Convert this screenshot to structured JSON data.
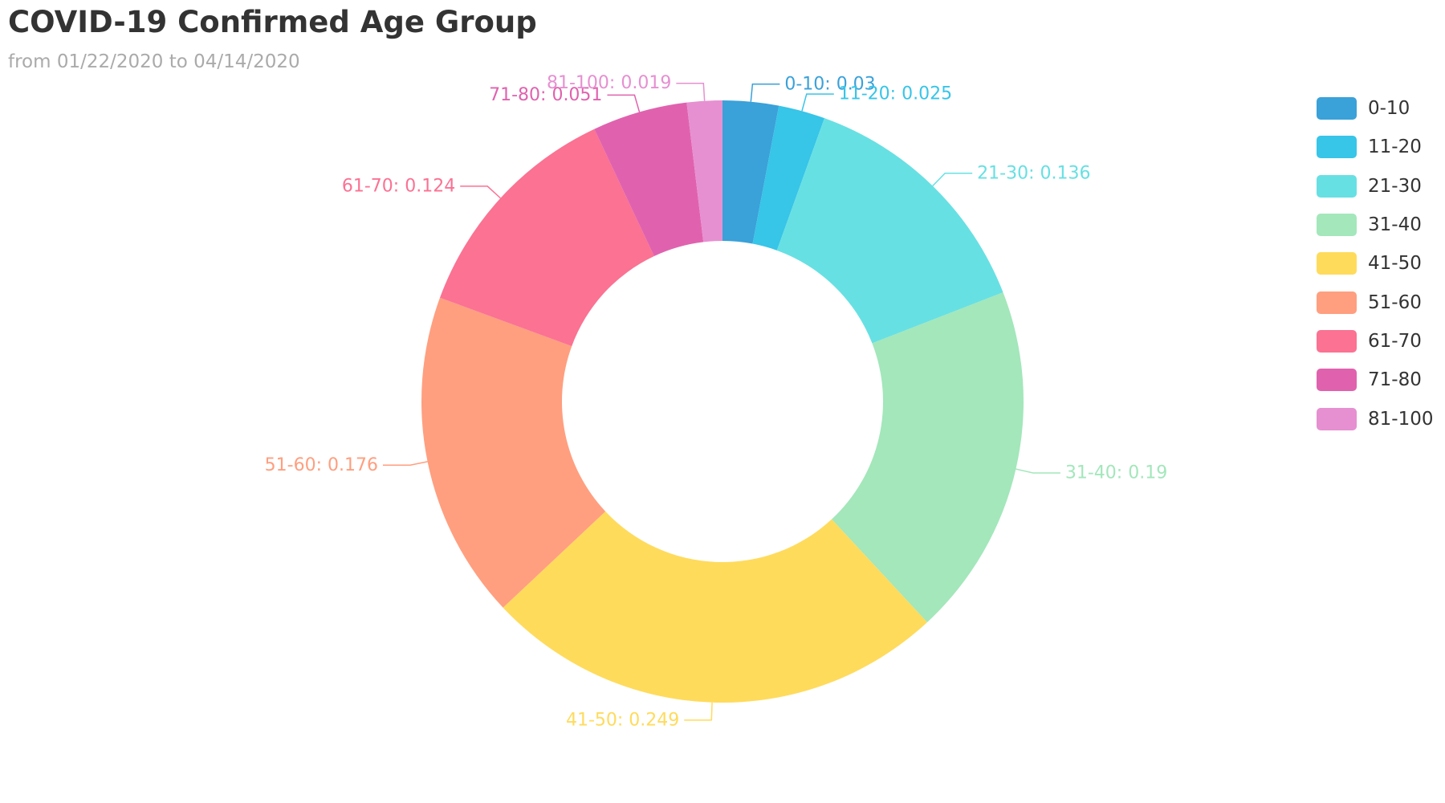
{
  "chart_data": {
    "type": "pie",
    "variant": "donut",
    "title": "COVID-19 Confirmed Age Group",
    "subtitle": "from 01/22/2020 to 04/14/2020",
    "legend_position": "right",
    "slices": [
      {
        "label": "0-10",
        "value": 0.03,
        "display": "0-10: 0.03",
        "color": "#3aa1d9"
      },
      {
        "label": "11-20",
        "value": 0.025,
        "display": "11-20: 0.025",
        "color": "#37c5e8"
      },
      {
        "label": "21-30",
        "value": 0.136,
        "display": "21-30: 0.136",
        "color": "#67e0e3"
      },
      {
        "label": "31-40",
        "value": 0.19,
        "display": "31-40: 0.19",
        "color": "#a3e7bb"
      },
      {
        "label": "41-50",
        "value": 0.249,
        "display": "41-50: 0.249",
        "color": "#ffdb5c"
      },
      {
        "label": "51-60",
        "value": 0.176,
        "display": "51-60: 0.176",
        "color": "#ff9f7f"
      },
      {
        "label": "61-70",
        "value": 0.124,
        "display": "61-70: 0.124",
        "color": "#fb7293"
      },
      {
        "label": "71-80",
        "value": 0.051,
        "display": "71-80: 0.051",
        "color": "#e062ae"
      },
      {
        "label": "81-100",
        "value": 0.019,
        "display": "81-100: 0.019",
        "color": "#e690d1"
      }
    ]
  }
}
